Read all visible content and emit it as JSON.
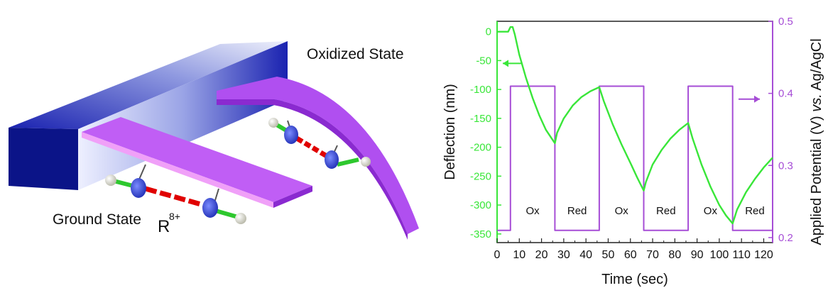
{
  "illustration": {
    "oxidized_label": "Oxidized State",
    "ground_label": "Ground State",
    "molecule_base": "R",
    "molecule_charge": "8+"
  },
  "chart_data": {
    "type": "line",
    "xlabel": "Time (sec)",
    "ylabel_left": "Deflection (nm)",
    "ylabel_right_parts": [
      "Applied Potential (V) ",
      "vs.",
      " Ag/AgCl"
    ],
    "xlim": [
      0,
      124
    ],
    "xticks": [
      0,
      10,
      20,
      30,
      40,
      50,
      60,
      70,
      80,
      90,
      100,
      110,
      120
    ],
    "ylim_left": [
      -365,
      18
    ],
    "yticks_left": [
      0,
      -50,
      -100,
      -150,
      -200,
      -250,
      -300,
      -350
    ],
    "ylim_right": [
      0.193,
      0.5
    ],
    "yticks_right": [
      0.2,
      0.3,
      0.4,
      0.5
    ],
    "colors": {
      "deflection": "#39e639",
      "potential": "#a64dd6",
      "axis": "#222222"
    },
    "region_labels": [
      {
        "text": "Ox",
        "x": 16
      },
      {
        "text": "Red",
        "x": 36
      },
      {
        "text": "Ox",
        "x": 56
      },
      {
        "text": "Red",
        "x": 76
      },
      {
        "text": "Ox",
        "x": 96
      },
      {
        "text": "Red",
        "x": 116
      }
    ],
    "region_label_y": -310,
    "series": [
      {
        "axis": "right",
        "points": [
          [
            0,
            0.21
          ],
          [
            6,
            0.21
          ],
          [
            6,
            0.41
          ],
          [
            26,
            0.41
          ],
          [
            26,
            0.21
          ],
          [
            46,
            0.21
          ],
          [
            46,
            0.41
          ],
          [
            66,
            0.41
          ],
          [
            66,
            0.21
          ],
          [
            86,
            0.21
          ],
          [
            86,
            0.41
          ],
          [
            106,
            0.41
          ],
          [
            106,
            0.21
          ],
          [
            124,
            0.21
          ]
        ]
      },
      {
        "axis": "left",
        "points": [
          [
            0,
            0
          ],
          [
            5,
            0
          ],
          [
            6,
            8
          ],
          [
            7,
            8
          ],
          [
            8,
            -5
          ],
          [
            10,
            -40
          ],
          [
            13,
            -80
          ],
          [
            16,
            -115
          ],
          [
            19,
            -145
          ],
          [
            22,
            -170
          ],
          [
            26,
            -193
          ],
          [
            27,
            -175
          ],
          [
            30,
            -150
          ],
          [
            34,
            -128
          ],
          [
            38,
            -113
          ],
          [
            42,
            -103
          ],
          [
            46,
            -96
          ],
          [
            48,
            -120
          ],
          [
            52,
            -160
          ],
          [
            56,
            -195
          ],
          [
            60,
            -227
          ],
          [
            63,
            -252
          ],
          [
            66,
            -275
          ],
          [
            67,
            -260
          ],
          [
            70,
            -230
          ],
          [
            74,
            -205
          ],
          [
            78,
            -185
          ],
          [
            82,
            -170
          ],
          [
            86,
            -158
          ],
          [
            88,
            -185
          ],
          [
            92,
            -230
          ],
          [
            96,
            -268
          ],
          [
            100,
            -300
          ],
          [
            103,
            -318
          ],
          [
            106,
            -332
          ],
          [
            108,
            -308
          ],
          [
            112,
            -278
          ],
          [
            116,
            -255
          ],
          [
            120,
            -235
          ],
          [
            124,
            -218
          ]
        ]
      }
    ]
  }
}
